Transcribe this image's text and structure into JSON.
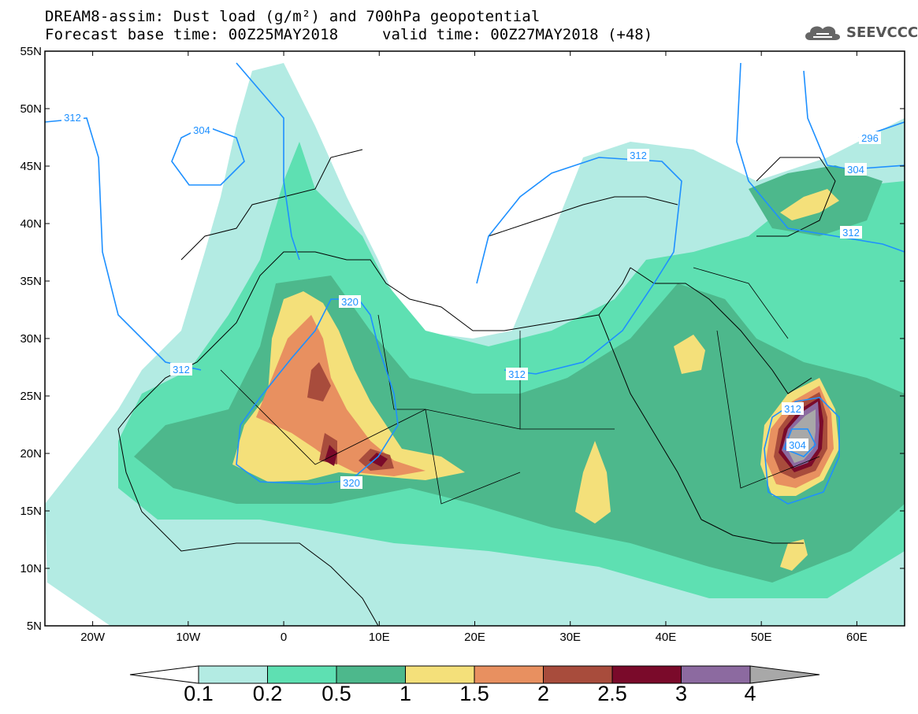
{
  "title": {
    "line1": "DREAM8-assim: Dust load (g/m²) and 700hPa geopotential",
    "base_time": "Forecast base time: 00Z25MAY2018",
    "valid_time": "valid time: 00Z27MAY2018 (+48)"
  },
  "logo": {
    "text": "SEEVCCC",
    "icon": "cloud-icon"
  },
  "axes": {
    "lat_labels": [
      "55N",
      "50N",
      "45N",
      "40N",
      "35N",
      "30N",
      "25N",
      "20N",
      "15N",
      "10N",
      "5N"
    ],
    "lon_labels": [
      "20W",
      "10W",
      "0",
      "10E",
      "20E",
      "30E",
      "40E",
      "50E",
      "60E"
    ],
    "lat_range": [
      5,
      55
    ],
    "lon_range": [
      -25,
      65
    ]
  },
  "contour_labels": [
    "312",
    "304",
    "320",
    "312",
    "312",
    "296",
    "304",
    "312",
    "312",
    "320",
    "312",
    "304"
  ],
  "colorbar": {
    "ticks": [
      "0.1",
      "0.2",
      "0.5",
      "1",
      "1.5",
      "2",
      "2.5",
      "3",
      "4"
    ],
    "colors": [
      "#b3ebe3",
      "#5ee0b2",
      "#4db88c",
      "#f4e07a",
      "#e89060",
      "#a84c3c",
      "#7a0a2a",
      "#8c6aa0",
      "#a8a8a8"
    ],
    "under_color": "#ffffff"
  },
  "colors": {
    "coast": "#000000",
    "contour": "#1e90ff"
  }
}
